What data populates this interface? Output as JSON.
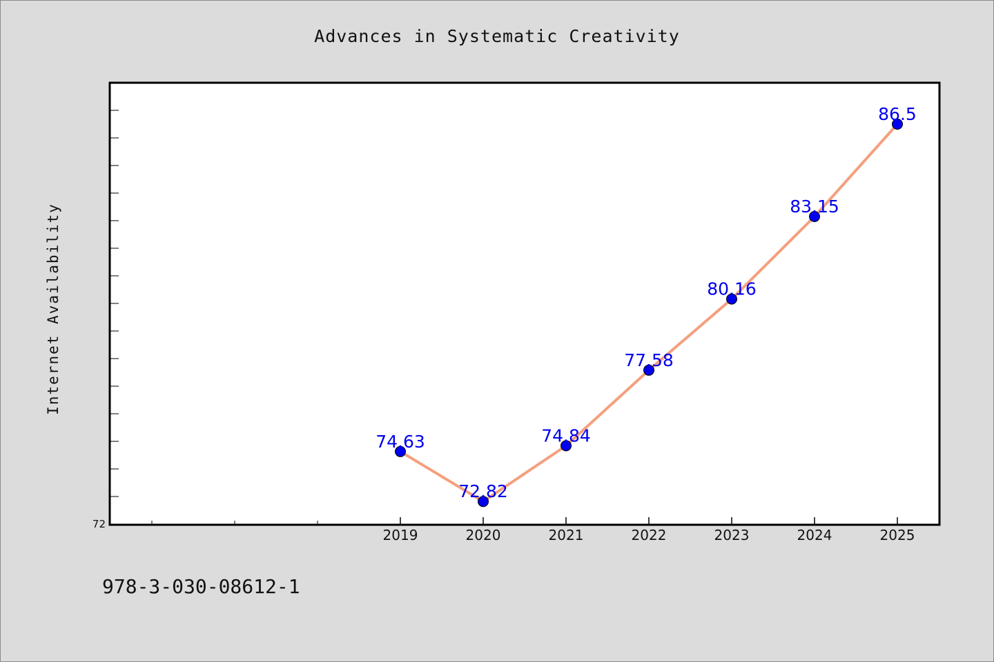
{
  "chart_data": {
    "type": "line",
    "title": "Advances in Systematic Creativity",
    "xlabel": "",
    "ylabel": "Internet Availability",
    "categories": [
      "2019",
      "2020",
      "2021",
      "2022",
      "2023",
      "2024",
      "2025"
    ],
    "series": [
      {
        "values": [
          74.63,
          72.82,
          74.84,
          77.58,
          80.16,
          83.15,
          86.5
        ]
      }
    ],
    "data_labels": [
      "74.63",
      "72.82",
      "74.84",
      "77.58",
      "80.16",
      "83.15",
      "86.5"
    ],
    "y_tick_labels": [
      "72"
    ],
    "ylim": [
      72,
      88
    ],
    "grid": false,
    "line_color": "#f4a07e",
    "marker_color": "#0000ee",
    "label_color": "#0000ee"
  },
  "footer": {
    "note": "978-3-030-08612-1"
  }
}
